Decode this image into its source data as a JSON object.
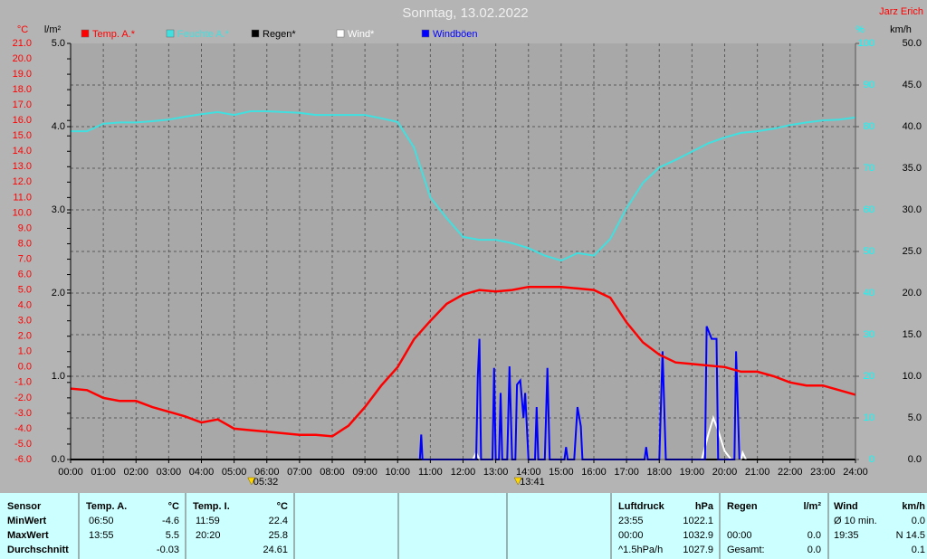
{
  "chart_data": {
    "type": "line",
    "title": "Sonntag, 13.02.2022",
    "author": "Jarz Erich",
    "xlim": [
      0,
      24
    ],
    "xticks": [
      {
        "value": 0,
        "label": "00:00"
      },
      {
        "value": 1,
        "label": "01:00"
      },
      {
        "value": 2,
        "label": "02:00"
      },
      {
        "value": 3,
        "label": "03:00"
      },
      {
        "value": 4,
        "label": "04:00"
      },
      {
        "value": 5,
        "label": "05:00"
      },
      {
        "value": 6,
        "label": "06:00"
      },
      {
        "value": 7,
        "label": "07:00"
      },
      {
        "value": 8,
        "label": "08:00"
      },
      {
        "value": 9,
        "label": "09:00"
      },
      {
        "value": 10,
        "label": "10:00"
      },
      {
        "value": 11,
        "label": "11:00"
      },
      {
        "value": 12,
        "label": "12:00"
      },
      {
        "value": 13,
        "label": "13:00"
      },
      {
        "value": 14,
        "label": "14:00"
      },
      {
        "value": 15,
        "label": "15:00"
      },
      {
        "value": 16,
        "label": "16:00"
      },
      {
        "value": 17,
        "label": "17:00"
      },
      {
        "value": 18,
        "label": "18:00"
      },
      {
        "value": 19,
        "label": "19:00"
      },
      {
        "value": 20,
        "label": "20:00"
      },
      {
        "value": 21,
        "label": "21:00"
      },
      {
        "value": 22,
        "label": "22:00"
      },
      {
        "value": 23,
        "label": "23:00"
      },
      {
        "value": 24,
        "label": "24:00"
      }
    ],
    "grid": true,
    "yaxes": [
      {
        "label": "°C",
        "color": "#ff0000",
        "side": "left",
        "lim": [
          -6,
          21
        ],
        "ticks": [
          {
            "value": -6,
            "label": "-6.0"
          },
          {
            "value": -5,
            "label": "-5.0"
          },
          {
            "value": -4,
            "label": "-4.0"
          },
          {
            "value": -3,
            "label": "-3.0"
          },
          {
            "value": -2,
            "label": "-2.0"
          },
          {
            "value": -1,
            "label": "-1.0"
          },
          {
            "value": 0,
            "label": "0.0"
          },
          {
            "value": 1,
            "label": "1.0"
          },
          {
            "value": 2,
            "label": "2.0"
          },
          {
            "value": 3,
            "label": "3.0"
          },
          {
            "value": 4,
            "label": "4.0"
          },
          {
            "value": 5,
            "label": "5.0"
          },
          {
            "value": 6,
            "label": "6.0"
          },
          {
            "value": 7,
            "label": "7.0"
          },
          {
            "value": 8,
            "label": "8.0"
          },
          {
            "value": 9,
            "label": "9.0"
          },
          {
            "value": 10,
            "label": "10.0"
          },
          {
            "value": 11,
            "label": "11.0"
          },
          {
            "value": 12,
            "label": "12.0"
          },
          {
            "value": 13,
            "label": "13.0"
          },
          {
            "value": 14,
            "label": "14.0"
          },
          {
            "value": 15,
            "label": "15.0"
          },
          {
            "value": 16,
            "label": "16.0"
          },
          {
            "value": 17,
            "label": "17.0"
          },
          {
            "value": 18,
            "label": "18.0"
          },
          {
            "value": 19,
            "label": "19.0"
          },
          {
            "value": 20,
            "label": "20.0"
          },
          {
            "value": 21,
            "label": "21.0"
          }
        ]
      },
      {
        "label": "l/m²",
        "color": "#000000",
        "side": "left",
        "lim": [
          0,
          5
        ],
        "ticks": [
          {
            "value": 0,
            "label": "0.0"
          },
          {
            "value": 1,
            "label": "1.0"
          },
          {
            "value": 2,
            "label": "2.0"
          },
          {
            "value": 3,
            "label": "3.0"
          },
          {
            "value": 4,
            "label": "4.0"
          },
          {
            "value": 5,
            "label": "5.0"
          }
        ]
      },
      {
        "label": "%",
        "color": "#00ffff",
        "side": "right",
        "lim": [
          0,
          100
        ],
        "ticks": [
          0,
          10,
          20,
          30,
          40,
          50,
          60,
          70,
          80,
          90,
          100
        ]
      },
      {
        "label": "km/h",
        "color": "#000000",
        "side": "right",
        "lim": [
          0,
          50
        ],
        "ticks": [
          {
            "value": 0,
            "label": "0.0"
          },
          {
            "value": 5,
            "label": "5.0"
          },
          {
            "value": 10,
            "label": "10.0"
          },
          {
            "value": 15,
            "label": "15.0"
          },
          {
            "value": 20,
            "label": "20.0"
          },
          {
            "value": 25,
            "label": "25.0"
          },
          {
            "value": 30,
            "label": "30.0"
          },
          {
            "value": 35,
            "label": "35.0"
          },
          {
            "value": 40,
            "label": "40.0"
          },
          {
            "value": 45,
            "label": "45.0"
          },
          {
            "value": 50,
            "label": "50.0"
          }
        ]
      }
    ],
    "series": [
      {
        "name": "Temp. A.*",
        "color": "#ff0000",
        "axis": 0,
        "x": [
          0,
          0.5,
          1,
          1.5,
          2,
          2.5,
          3,
          3.5,
          4,
          4.5,
          5,
          5.5,
          6,
          6.5,
          7,
          7.5,
          8,
          8.5,
          9,
          9.5,
          10,
          10.5,
          11,
          11.5,
          12,
          12.5,
          13,
          13.5,
          14,
          14.5,
          15,
          15.5,
          16,
          16.5,
          17,
          17.5,
          18,
          18.5,
          19,
          19.5,
          20,
          20.5,
          21,
          21.5,
          22,
          22.5,
          23,
          23.5,
          24
        ],
        "values": [
          -1.4,
          -1.5,
          -2.0,
          -2.2,
          -2.2,
          -2.6,
          -2.9,
          -3.2,
          -3.6,
          -3.4,
          -4.0,
          -4.1,
          -4.2,
          -4.3,
          -4.4,
          -4.4,
          -4.5,
          -3.8,
          -2.6,
          -1.2,
          0.0,
          1.8,
          3.0,
          4.1,
          4.7,
          5.0,
          4.9,
          5.0,
          5.2,
          5.2,
          5.2,
          5.1,
          5.0,
          4.5,
          2.9,
          1.6,
          0.8,
          0.3,
          0.2,
          0.1,
          0.0,
          -0.3,
          -0.3,
          -0.6,
          -1.0,
          -1.2,
          -1.2,
          -1.5,
          -1.8
        ]
      },
      {
        "name": "Feuchte A.*",
        "color": "#40e0e0",
        "axis": 2,
        "x": [
          0,
          0.5,
          1,
          1.5,
          2,
          2.5,
          3,
          3.5,
          4,
          4.5,
          5,
          5.5,
          6,
          6.5,
          7,
          7.5,
          8,
          8.5,
          9,
          9.5,
          10,
          10.5,
          11,
          11.5,
          12,
          12.5,
          13,
          13.5,
          14,
          14.5,
          15,
          15.5,
          16,
          16.5,
          17,
          17.5,
          18,
          18.5,
          19,
          19.5,
          20,
          20.5,
          21,
          21.5,
          22,
          22.5,
          23,
          23.5,
          24
        ],
        "values": [
          78.9,
          78.9,
          80.7,
          81.0,
          81.0,
          81.3,
          81.7,
          82.4,
          83.0,
          83.5,
          82.8,
          83.7,
          83.7,
          83.5,
          83.3,
          82.8,
          82.8,
          82.8,
          82.8,
          82.0,
          81.1,
          75.0,
          63.0,
          58.0,
          53.5,
          52.8,
          52.8,
          52.0,
          50.8,
          49.0,
          47.8,
          49.6,
          49.0,
          53.0,
          60.4,
          66.5,
          70.2,
          72.0,
          74.0,
          76.0,
          77.4,
          78.5,
          78.9,
          79.5,
          80.4,
          81.0,
          81.5,
          81.7,
          82.2
        ]
      },
      {
        "name": "Regen*",
        "color": "#000000",
        "axis": 1,
        "x": [
          0,
          24
        ],
        "values": [
          0,
          0
        ]
      },
      {
        "name": "Wind*",
        "color": "#ffffff",
        "axis": 3,
        "x": [
          12.3,
          12.4,
          12.5,
          19.3,
          19.5,
          19.65,
          19.8,
          20.0,
          20.2,
          20.5,
          20.55,
          20.65
        ],
        "values": [
          0,
          0.8,
          0,
          0,
          3,
          5.0,
          3.5,
          1,
          0,
          0,
          0.8,
          0
        ]
      },
      {
        "name": "Windböen",
        "color": "#0000ff",
        "axis": 3,
        "x": [
          10.68,
          10.72,
          10.76,
          12.4,
          12.45,
          12.5,
          12.55,
          12.9,
          12.95,
          13.0,
          13.1,
          13.15,
          13.2,
          13.35,
          13.42,
          13.5,
          13.6,
          13.65,
          13.75,
          13.85,
          13.9,
          14.0,
          14.2,
          14.25,
          14.3,
          14.5,
          14.58,
          14.65,
          15.1,
          15.15,
          15.2,
          15.4,
          15.5,
          15.6,
          15.65,
          17.55,
          17.6,
          17.65,
          18.0,
          18.1,
          18.2,
          19.4,
          19.45,
          19.6,
          19.75,
          19.8,
          20.3,
          20.35,
          20.45
        ],
        "values": [
          0,
          3.0,
          0,
          0,
          10,
          14.5,
          0,
          0,
          11.0,
          0,
          0,
          8,
          0,
          0,
          11.2,
          0,
          0,
          9,
          9.5,
          5,
          8,
          0,
          0,
          6.3,
          0,
          0,
          11.0,
          0,
          0,
          1.5,
          0,
          0,
          6.3,
          4,
          0,
          0,
          1.5,
          0,
          0,
          13.0,
          0,
          0,
          16.0,
          14.5,
          14.5,
          0,
          0,
          13.0,
          0
        ]
      }
    ],
    "annotations": [
      {
        "x": 5.53,
        "label": "05:32"
      },
      {
        "x": 13.68,
        "label": "13:41"
      }
    ]
  },
  "table": {
    "header": [
      "Sensor",
      "Temp. A.",
      "°C",
      "Temp. I.",
      "°C",
      "Luftdruck",
      "hPa",
      "Regen",
      "l/m²",
      "Wind",
      "km/h"
    ],
    "rows": [
      [
        "MinWert",
        "06:50",
        "-4.6",
        "11:59",
        "22.4",
        "23:55",
        "1022.1",
        null,
        null,
        "Ø 10 min.",
        "0.0"
      ],
      [
        "MaxWert",
        "13:55",
        "5.5",
        "20:20",
        "25.8",
        "00:00",
        "1032.9",
        "00:00",
        "0.0",
        "19:35",
        "N 14.5"
      ],
      [
        "Durchschnitt",
        null,
        "-0.03",
        null,
        "24.61",
        "^1.5hPa/h",
        "1027.9",
        "Gesamt:",
        "0.0",
        null,
        "0.1"
      ]
    ]
  }
}
